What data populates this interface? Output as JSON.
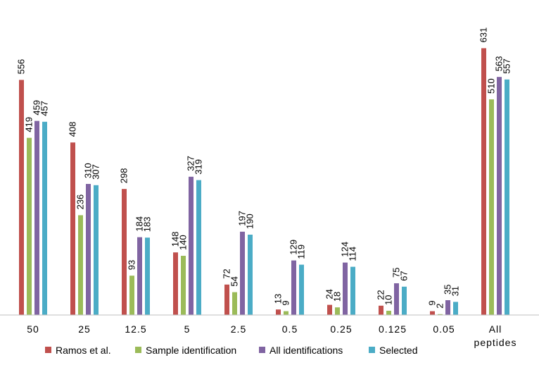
{
  "chart_data": {
    "type": "bar",
    "title": "",
    "xlabel": "",
    "ylabel": "",
    "ylim": [
      0,
      700
    ],
    "grid": false,
    "legend_position": "bottom",
    "categories": [
      [
        "50"
      ],
      [
        "25"
      ],
      [
        "12.5"
      ],
      [
        "5"
      ],
      [
        "2.5"
      ],
      [
        "0.5"
      ],
      [
        "0.25"
      ],
      [
        "0.125"
      ],
      [
        "0.05"
      ],
      [
        "All",
        "peptides"
      ]
    ],
    "series": [
      {
        "name": "Ramos et al.",
        "color": "#c0504d",
        "values": [
          556,
          408,
          298,
          148,
          72,
          13,
          24,
          22,
          9,
          631
        ]
      },
      {
        "name": "Sample identification",
        "color": "#9bbb59",
        "values": [
          419,
          236,
          93,
          140,
          54,
          9,
          18,
          10,
          2,
          510
        ]
      },
      {
        "name": "All identifications",
        "color": "#8064a2",
        "values": [
          459,
          310,
          184,
          327,
          197,
          129,
          124,
          75,
          35,
          563
        ]
      },
      {
        "name": "Selected",
        "color": "#4bacc6",
        "values": [
          457,
          307,
          183,
          319,
          190,
          119,
          114,
          67,
          31,
          557
        ]
      }
    ]
  }
}
